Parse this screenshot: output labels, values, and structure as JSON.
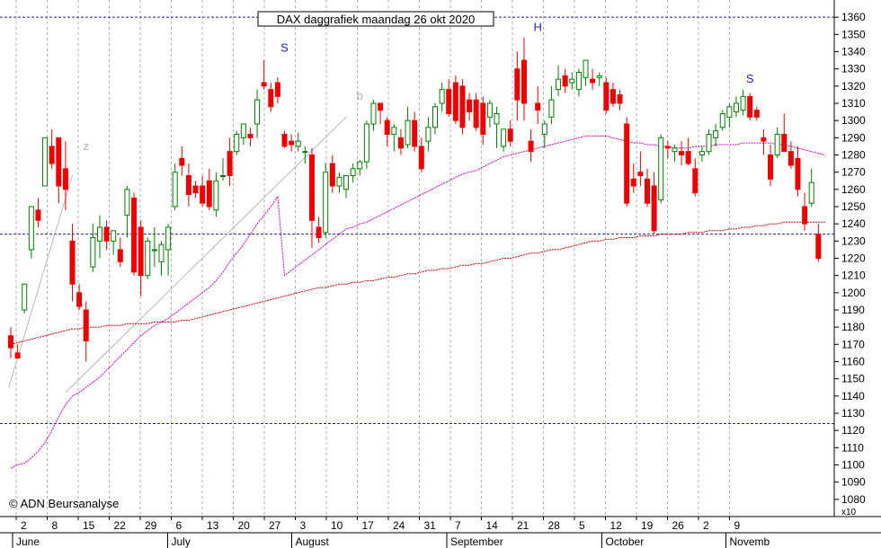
{
  "chart_data": {
    "type": "candlestick",
    "title": "DAX daggrafiek maandag 26 okt 2020",
    "copyright": "© ADN Beursanalyse",
    "y_axis": {
      "position": "right",
      "range": [
        1070,
        1370
      ],
      "ticks": [
        1080,
        1090,
        1100,
        1110,
        1120,
        1130,
        1140,
        1150,
        1160,
        1170,
        1180,
        1190,
        1200,
        1210,
        1220,
        1230,
        1240,
        1250,
        1260,
        1270,
        1280,
        1290,
        1300,
        1310,
        1320,
        1330,
        1340,
        1350,
        1360
      ],
      "multiplier_label": "x10"
    },
    "x_axis": {
      "day_labels": [
        "2",
        "8",
        "15",
        "22",
        "29",
        "6",
        "13",
        "20",
        "27",
        "3",
        "10",
        "17",
        "24",
        "31",
        "7",
        "14",
        "21",
        "28",
        "5",
        "12",
        "19",
        "26",
        "2",
        "9"
      ],
      "month_labels": [
        "June",
        "July",
        "August",
        "September",
        "October",
        "Novemb"
      ]
    },
    "horizontal_levels": [
      1360,
      1234,
      1124
    ],
    "annotations": [
      {
        "label": "S",
        "x_index": 40,
        "value": 1340
      },
      {
        "label": "H",
        "x_index": 77,
        "value": 1352
      },
      {
        "label": "S",
        "x_index": 108,
        "value": 1322
      },
      {
        "label": "z",
        "x_index": 11,
        "value": 1283
      },
      {
        "label": "b",
        "x_index": 51,
        "value": 1312
      }
    ],
    "trendlines": [
      {
        "from": [
          -0.3,
          1145
        ],
        "to": [
          9,
          1268
        ]
      },
      {
        "from": [
          8,
          1142
        ],
        "to": [
          49,
          1302
        ]
      }
    ],
    "moving_average_short": {
      "name": "",
      "values": [
        1098,
        1100,
        1101,
        1104,
        1108,
        1113,
        1120,
        1128,
        1135,
        1140,
        1142,
        1145,
        1148,
        1151,
        1155,
        1159,
        1163,
        1167,
        1171,
        1175,
        1178,
        1181,
        1183,
        1185,
        1188,
        1191,
        1194,
        1197,
        1200,
        1203,
        1207,
        1212,
        1218,
        1223,
        1228,
        1234,
        1240,
        1245,
        1250,
        1256,
        1210,
        1213,
        1216,
        1219,
        1222,
        1225,
        1228,
        1231,
        1234,
        1237,
        1238,
        1240,
        1241,
        1243,
        1245,
        1247,
        1249,
        1251,
        1253,
        1255,
        1257,
        1259,
        1261,
        1263,
        1265,
        1267,
        1269,
        1270,
        1271,
        1273,
        1275,
        1277,
        1279,
        1280,
        1281,
        1282,
        1283,
        1284,
        1285,
        1286,
        1287,
        1288,
        1289,
        1290,
        1291,
        1291,
        1291,
        1291,
        1290,
        1289,
        1288,
        1287,
        1287,
        1286,
        1286,
        1285,
        1285,
        1284,
        1284,
        1284,
        1285,
        1285,
        1285,
        1286,
        1286,
        1286,
        1286,
        1287,
        1287,
        1287,
        1287,
        1287,
        1286,
        1286,
        1285,
        1284,
        1283,
        1282,
        1281,
        1280
      ]
    },
    "moving_average_long": {
      "name": "",
      "values": [
        1170,
        1171,
        1172,
        1173,
        1174,
        1175,
        1176,
        1177,
        1178,
        1179,
        1179,
        1180,
        1180,
        1180,
        1181,
        1181,
        1181,
        1182,
        1182,
        1182,
        1182,
        1183,
        1183,
        1183,
        1183,
        1184,
        1184,
        1185,
        1186,
        1187,
        1188,
        1189,
        1190,
        1191,
        1192,
        1193,
        1194,
        1195,
        1196,
        1197,
        1198,
        1199,
        1200,
        1201,
        1202,
        1203,
        1203,
        1204,
        1205,
        1205,
        1206,
        1206,
        1207,
        1207,
        1208,
        1209,
        1209,
        1210,
        1211,
        1211,
        1212,
        1213,
        1213,
        1214,
        1214,
        1215,
        1216,
        1216,
        1217,
        1217,
        1218,
        1219,
        1220,
        1220,
        1221,
        1222,
        1223,
        1223,
        1224,
        1225,
        1225,
        1226,
        1227,
        1228,
        1229,
        1230,
        1230,
        1231,
        1231,
        1232,
        1232,
        1232,
        1233,
        1233,
        1233,
        1234,
        1234,
        1234,
        1234,
        1235,
        1235,
        1235,
        1236,
        1236,
        1236,
        1237,
        1237,
        1238,
        1238,
        1239,
        1239,
        1240,
        1240,
        1241,
        1241,
        1241,
        1241,
        1241,
        1241,
        1241
      ]
    },
    "candles": [
      {
        "o": 1175,
        "h": 1180,
        "l": 1162,
        "c": 1168
      },
      {
        "o": 1165,
        "h": 1170,
        "l": 1162,
        "c": 1162
      },
      {
        "o": 1190,
        "h": 1205,
        "l": 1188,
        "c": 1205
      },
      {
        "o": 1225,
        "h": 1250,
        "l": 1220,
        "c": 1250
      },
      {
        "o": 1248,
        "h": 1255,
        "l": 1238,
        "c": 1242
      },
      {
        "o": 1262,
        "h": 1290,
        "l": 1262,
        "c": 1290
      },
      {
        "o": 1285,
        "h": 1295,
        "l": 1272,
        "c": 1275
      },
      {
        "o": 1290,
        "h": 1290,
        "l": 1252,
        "c": 1262
      },
      {
        "o": 1272,
        "h": 1288,
        "l": 1248,
        "c": 1260
      },
      {
        "o": 1230,
        "h": 1240,
        "l": 1195,
        "c": 1205
      },
      {
        "o": 1200,
        "h": 1205,
        "l": 1190,
        "c": 1192
      },
      {
        "o": 1190,
        "h": 1195,
        "l": 1160,
        "c": 1172
      },
      {
        "o": 1215,
        "h": 1240,
        "l": 1212,
        "c": 1232
      },
      {
        "o": 1230,
        "h": 1245,
        "l": 1220,
        "c": 1238
      },
      {
        "o": 1238,
        "h": 1242,
        "l": 1225,
        "c": 1230
      },
      {
        "o": 1230,
        "h": 1235,
        "l": 1222,
        "c": 1236
      },
      {
        "o": 1225,
        "h": 1232,
        "l": 1215,
        "c": 1218
      },
      {
        "o": 1245,
        "h": 1262,
        "l": 1232,
        "c": 1260
      },
      {
        "o": 1255,
        "h": 1258,
        "l": 1210,
        "c": 1212
      },
      {
        "o": 1238,
        "h": 1242,
        "l": 1198,
        "c": 1210
      },
      {
        "o": 1210,
        "h": 1232,
        "l": 1208,
        "c": 1230
      },
      {
        "o": 1225,
        "h": 1238,
        "l": 1215,
        "c": 1225
      },
      {
        "o": 1218,
        "h": 1230,
        "l": 1210,
        "c": 1228
      },
      {
        "o": 1225,
        "h": 1240,
        "l": 1210,
        "c": 1238
      },
      {
        "o": 1250,
        "h": 1275,
        "l": 1248,
        "c": 1270
      },
      {
        "o": 1278,
        "h": 1285,
        "l": 1268,
        "c": 1274
      },
      {
        "o": 1268,
        "h": 1275,
        "l": 1250,
        "c": 1257
      },
      {
        "o": 1262,
        "h": 1265,
        "l": 1255,
        "c": 1258
      },
      {
        "o": 1262,
        "h": 1268,
        "l": 1250,
        "c": 1252
      },
      {
        "o": 1265,
        "h": 1272,
        "l": 1248,
        "c": 1250
      },
      {
        "o": 1248,
        "h": 1270,
        "l": 1244,
        "c": 1265
      },
      {
        "o": 1268,
        "h": 1278,
        "l": 1265,
        "c": 1268
      },
      {
        "o": 1282,
        "h": 1290,
        "l": 1262,
        "c": 1268
      },
      {
        "o": 1282,
        "h": 1294,
        "l": 1280,
        "c": 1292
      },
      {
        "o": 1290,
        "h": 1298,
        "l": 1286,
        "c": 1298
      },
      {
        "o": 1292,
        "h": 1296,
        "l": 1285,
        "c": 1290
      },
      {
        "o": 1298,
        "h": 1318,
        "l": 1290,
        "c": 1312
      },
      {
        "o": 1322,
        "h": 1335,
        "l": 1318,
        "c": 1320
      },
      {
        "o": 1318,
        "h": 1322,
        "l": 1305,
        "c": 1308
      },
      {
        "o": 1322,
        "h": 1325,
        "l": 1310,
        "c": 1314
      },
      {
        "o": 1292,
        "h": 1294,
        "l": 1284,
        "c": 1285
      },
      {
        "o": 1288,
        "h": 1292,
        "l": 1282,
        "c": 1286
      },
      {
        "o": 1285,
        "h": 1293,
        "l": 1282,
        "c": 1288
      },
      {
        "o": 1282,
        "h": 1285,
        "l": 1275,
        "c": 1282
      },
      {
        "o": 1280,
        "h": 1284,
        "l": 1226,
        "c": 1242
      },
      {
        "o": 1238,
        "h": 1244,
        "l": 1229,
        "c": 1232
      },
      {
        "o": 1235,
        "h": 1275,
        "l": 1232,
        "c": 1270
      },
      {
        "o": 1275,
        "h": 1280,
        "l": 1258,
        "c": 1262
      },
      {
        "o": 1262,
        "h": 1270,
        "l": 1258,
        "c": 1267
      },
      {
        "o": 1260,
        "h": 1268,
        "l": 1255,
        "c": 1268
      },
      {
        "o": 1268,
        "h": 1275,
        "l": 1264,
        "c": 1272
      },
      {
        "o": 1272,
        "h": 1277,
        "l": 1268,
        "c": 1276
      },
      {
        "o": 1276,
        "h": 1300,
        "l": 1272,
        "c": 1298
      },
      {
        "o": 1298,
        "h": 1312,
        "l": 1294,
        "c": 1310
      },
      {
        "o": 1310,
        "h": 1310,
        "l": 1298,
        "c": 1306
      },
      {
        "o": 1300,
        "h": 1302,
        "l": 1285,
        "c": 1292
      },
      {
        "o": 1292,
        "h": 1298,
        "l": 1282,
        "c": 1296
      },
      {
        "o": 1290,
        "h": 1295,
        "l": 1280,
        "c": 1284
      },
      {
        "o": 1286,
        "h": 1308,
        "l": 1284,
        "c": 1300
      },
      {
        "o": 1300,
        "h": 1305,
        "l": 1282,
        "c": 1285
      },
      {
        "o": 1285,
        "h": 1290,
        "l": 1270,
        "c": 1272
      },
      {
        "o": 1288,
        "h": 1302,
        "l": 1282,
        "c": 1296
      },
      {
        "o": 1296,
        "h": 1310,
        "l": 1292,
        "c": 1308
      },
      {
        "o": 1310,
        "h": 1322,
        "l": 1305,
        "c": 1318
      },
      {
        "o": 1318,
        "h": 1324,
        "l": 1302,
        "c": 1304
      },
      {
        "o": 1322,
        "h": 1326,
        "l": 1298,
        "c": 1300
      },
      {
        "o": 1320,
        "h": 1324,
        "l": 1292,
        "c": 1296
      },
      {
        "o": 1312,
        "h": 1316,
        "l": 1300,
        "c": 1305
      },
      {
        "o": 1312,
        "h": 1316,
        "l": 1294,
        "c": 1296
      },
      {
        "o": 1310,
        "h": 1314,
        "l": 1286,
        "c": 1292
      },
      {
        "o": 1302,
        "h": 1312,
        "l": 1296,
        "c": 1310
      },
      {
        "o": 1298,
        "h": 1308,
        "l": 1284,
        "c": 1304
      },
      {
        "o": 1285,
        "h": 1295,
        "l": 1282,
        "c": 1295
      },
      {
        "o": 1295,
        "h": 1300,
        "l": 1285,
        "c": 1288
      },
      {
        "o": 1330,
        "h": 1340,
        "l": 1300,
        "c": 1312
      },
      {
        "o": 1335,
        "h": 1348,
        "l": 1300,
        "c": 1310
      },
      {
        "o": 1288,
        "h": 1295,
        "l": 1276,
        "c": 1282
      },
      {
        "o": 1310,
        "h": 1320,
        "l": 1298,
        "c": 1306
      },
      {
        "o": 1292,
        "h": 1300,
        "l": 1284,
        "c": 1298
      },
      {
        "o": 1302,
        "h": 1320,
        "l": 1298,
        "c": 1312
      },
      {
        "o": 1318,
        "h": 1332,
        "l": 1314,
        "c": 1324
      },
      {
        "o": 1326,
        "h": 1330,
        "l": 1316,
        "c": 1320
      },
      {
        "o": 1322,
        "h": 1328,
        "l": 1318,
        "c": 1324
      },
      {
        "o": 1318,
        "h": 1330,
        "l": 1314,
        "c": 1328
      },
      {
        "o": 1325,
        "h": 1335,
        "l": 1320,
        "c": 1335
      },
      {
        "o": 1324,
        "h": 1330,
        "l": 1318,
        "c": 1322
      },
      {
        "o": 1325,
        "h": 1328,
        "l": 1320,
        "c": 1326
      },
      {
        "o": 1322,
        "h": 1325,
        "l": 1304,
        "c": 1306
      },
      {
        "o": 1318,
        "h": 1322,
        "l": 1308,
        "c": 1310
      },
      {
        "o": 1315,
        "h": 1318,
        "l": 1306,
        "c": 1310
      },
      {
        "o": 1298,
        "h": 1302,
        "l": 1250,
        "c": 1252
      },
      {
        "o": 1266,
        "h": 1275,
        "l": 1258,
        "c": 1262
      },
      {
        "o": 1270,
        "h": 1282,
        "l": 1262,
        "c": 1268
      },
      {
        "o": 1266,
        "h": 1272,
        "l": 1250,
        "c": 1252
      },
      {
        "o": 1262,
        "h": 1270,
        "l": 1234,
        "c": 1236
      },
      {
        "o": 1254,
        "h": 1292,
        "l": 1252,
        "c": 1290
      },
      {
        "o": 1285,
        "h": 1288,
        "l": 1278,
        "c": 1284
      },
      {
        "o": 1282,
        "h": 1286,
        "l": 1276,
        "c": 1284
      },
      {
        "o": 1282,
        "h": 1288,
        "l": 1274,
        "c": 1280
      },
      {
        "o": 1282,
        "h": 1290,
        "l": 1274,
        "c": 1275
      },
      {
        "o": 1272,
        "h": 1278,
        "l": 1256,
        "c": 1258
      },
      {
        "o": 1280,
        "h": 1285,
        "l": 1276,
        "c": 1282
      },
      {
        "o": 1282,
        "h": 1295,
        "l": 1280,
        "c": 1292
      },
      {
        "o": 1290,
        "h": 1298,
        "l": 1285,
        "c": 1294
      },
      {
        "o": 1296,
        "h": 1306,
        "l": 1294,
        "c": 1304
      },
      {
        "o": 1302,
        "h": 1310,
        "l": 1296,
        "c": 1308
      },
      {
        "o": 1305,
        "h": 1314,
        "l": 1302,
        "c": 1310
      },
      {
        "o": 1306,
        "h": 1318,
        "l": 1303,
        "c": 1314
      },
      {
        "o": 1314,
        "h": 1316,
        "l": 1300,
        "c": 1302
      },
      {
        "o": 1306,
        "h": 1308,
        "l": 1300,
        "c": 1302
      },
      {
        "o": 1290,
        "h": 1295,
        "l": 1280,
        "c": 1288
      },
      {
        "o": 1280,
        "h": 1286,
        "l": 1262,
        "c": 1266
      },
      {
        "o": 1280,
        "h": 1296,
        "l": 1278,
        "c": 1292
      },
      {
        "o": 1292,
        "h": 1304,
        "l": 1284,
        "c": 1282
      },
      {
        "o": 1282,
        "h": 1288,
        "l": 1272,
        "c": 1274
      },
      {
        "o": 1278,
        "h": 1285,
        "l": 1256,
        "c": 1260
      },
      {
        "o": 1250,
        "h": 1258,
        "l": 1236,
        "c": 1240
      },
      {
        "o": 1252,
        "h": 1272,
        "l": 1250,
        "c": 1264
      },
      {
        "o": 1234,
        "h": 1240,
        "l": 1218,
        "c": 1220
      }
    ]
  }
}
